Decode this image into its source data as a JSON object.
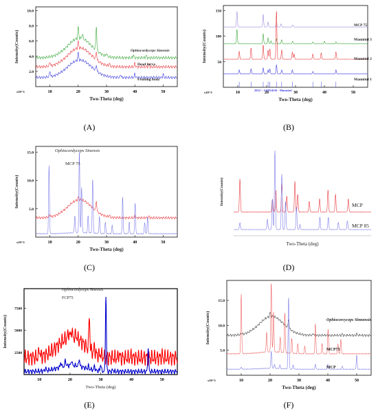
{
  "panel_labels": [
    "(A)",
    "(B)",
    "(C)",
    "(D)",
    "(E)",
    "(F)"
  ],
  "chart_data": [
    {
      "id": "A",
      "type": "line",
      "xlabel": "Two-Theta (deg)",
      "ylabel": "Intensity(Counts)",
      "multiplier": "x10^3",
      "xlim": [
        5,
        55
      ],
      "ylim": [
        0,
        10.5
      ],
      "xticks": [
        10,
        20,
        30,
        40,
        50
      ],
      "yticks": [
        2.0,
        4.0,
        6.0,
        8.0,
        10.0
      ],
      "ytick_labels": [
        "2.0",
        "4.0",
        "6.0",
        "8.0",
        "10.0"
      ],
      "series": [
        {
          "name": "Ophiocordyceps Sinensis",
          "color": "#3aa83a",
          "baseline": 3.8,
          "hump": 2.6,
          "peaks": [
            [
              20,
              1.5
            ],
            [
              26.4,
              3.2
            ],
            [
              21.5,
              0.6
            ],
            [
              30,
              0.4
            ],
            [
              39.5,
              0.4
            ],
            [
              44,
              0.3
            ]
          ]
        },
        {
          "name": "Dead larva",
          "color": "#e8363a",
          "baseline": 2.6,
          "hump": 2.5,
          "peaks": [
            [
              10,
              0.6
            ],
            [
              20,
              0.9
            ],
            [
              26.4,
              1.1
            ],
            [
              31,
              0.4
            ],
            [
              40,
              0.5
            ],
            [
              45,
              0.4
            ]
          ]
        },
        {
          "name": "Fruiting body",
          "color": "#3b3bdd",
          "baseline": 1.2,
          "hump": 2.3,
          "peaks": [
            [
              10,
              0.8
            ],
            [
              20,
              1.0
            ],
            [
              26.4,
              0.8
            ],
            [
              35,
              0.4
            ],
            [
              40,
              0.5
            ],
            [
              50,
              0.4
            ]
          ]
        }
      ]
    },
    {
      "id": "B",
      "type": "line",
      "xlabel": "Two-Theta (deg)",
      "ylabel": "Intensity(Counts)",
      "multiplier": "x10^3",
      "xlim": [
        5,
        55
      ],
      "ylim": [
        0,
        160
      ],
      "xticks": [
        10,
        20,
        30,
        40,
        50
      ],
      "yticks": [
        50,
        100,
        150
      ],
      "ytick_labels": [
        "50",
        "100",
        "150"
      ],
      "reference_label": "2052 > C6H14O6 - Mannitol",
      "series": [
        {
          "name": "MCP 75",
          "color": "#a08ce0",
          "baseline": 118,
          "hump": 0,
          "peaks": [
            [
              9.7,
              30
            ],
            [
              18.8,
              25
            ],
            [
              20.5,
              10
            ],
            [
              23.4,
              8
            ],
            [
              25,
              6
            ],
            [
              29,
              4
            ]
          ]
        },
        {
          "name": "Mannitol 3",
          "color": "#3aa83a",
          "baseline": 85,
          "hump": 0,
          "peaks": [
            [
              9.7,
              28
            ],
            [
              18.8,
              20
            ],
            [
              20.5,
              12
            ],
            [
              21.5,
              6
            ],
            [
              23.4,
              10
            ],
            [
              25.2,
              8
            ],
            [
              29,
              5
            ],
            [
              36,
              4
            ],
            [
              40,
              5
            ],
            [
              44,
              4
            ]
          ]
        },
        {
          "name": "Mannitol 2",
          "color": "#e8363a",
          "baseline": 55,
          "hump": 0,
          "peaks": [
            [
              10.5,
              15
            ],
            [
              14.6,
              22
            ],
            [
              18.8,
              28
            ],
            [
              20.5,
              18
            ],
            [
              21.1,
              20
            ],
            [
              23.4,
              95
            ],
            [
              25.2,
              18
            ],
            [
              28.9,
              14
            ],
            [
              29.5,
              10
            ],
            [
              36,
              10
            ],
            [
              38.9,
              12
            ],
            [
              44,
              14
            ]
          ]
        },
        {
          "name": "Mannitol 1",
          "color": "#3b3bdd",
          "baseline": 26,
          "hump": 0,
          "peaks": [
            [
              10.5,
              8
            ],
            [
              14.6,
              10
            ],
            [
              18.8,
              12
            ],
            [
              20.5,
              8
            ],
            [
              21.1,
              10
            ],
            [
              23.4,
              18
            ],
            [
              25.2,
              8
            ],
            [
              28.9,
              8
            ],
            [
              36,
              5
            ],
            [
              44,
              8
            ]
          ]
        }
      ]
    },
    {
      "id": "C",
      "type": "line",
      "xlabel": "Two-Theta (deg)",
      "ylabel": "Intensity(Counts)",
      "multiplier": "x10^3",
      "xlim": [
        5,
        55
      ],
      "ylim": [
        0,
        16
      ],
      "xticks": [
        10,
        20,
        30,
        40,
        50
      ],
      "yticks": [
        5.0,
        10.0,
        15.0
      ],
      "ytick_labels": [
        "5.0",
        "10.0",
        "15.0"
      ],
      "series": [
        {
          "name": "Ophiocordyceps Sinensis",
          "color": "#e8363a",
          "baseline": 3.4,
          "hump": 3.2,
          "peaks": [
            [
              10,
              0.6
            ],
            [
              20,
              0.5
            ],
            [
              26.4,
              1.8
            ],
            [
              31,
              0.4
            ],
            [
              40,
              0.4
            ],
            [
              45,
              0.3
            ]
          ]
        },
        {
          "name": "MCP 75",
          "color": "#7a7ae8",
          "baseline": 0.6,
          "hump": 0.2,
          "peaks": [
            [
              9.7,
              12
            ],
            [
              18.8,
              3
            ],
            [
              20.4,
              14.5
            ],
            [
              21.2,
              8
            ],
            [
              23.5,
              3
            ],
            [
              25.1,
              9.5
            ],
            [
              27.5,
              3
            ],
            [
              29.6,
              2
            ],
            [
              32,
              1.5
            ],
            [
              35.7,
              6.5
            ],
            [
              38,
              2
            ],
            [
              40.1,
              5.5
            ],
            [
              43.5,
              2
            ],
            [
              44.5,
              3
            ]
          ]
        }
      ]
    },
    {
      "id": "D",
      "type": "line",
      "xlabel": "Two-Theta (deg)",
      "ylabel": "Intensity(Counts)",
      "xlim": [
        8,
        52
      ],
      "ylim": [
        0,
        10
      ],
      "xticks": [],
      "yticks": [],
      "series": [
        {
          "name": "MCP",
          "color": "#e8363a",
          "baseline": 2.7,
          "hump": 0,
          "peaks": [
            [
              10,
              3.8
            ],
            [
              20.4,
              1.5
            ],
            [
              21.5,
              2.5
            ],
            [
              23.4,
              3.2
            ],
            [
              25,
              1.8
            ],
            [
              27.6,
              3.5
            ],
            [
              28.5,
              2
            ],
            [
              32.2,
              1.2
            ],
            [
              35.5,
              1.5
            ],
            [
              38.2,
              2.5
            ],
            [
              40.6,
              2
            ],
            [
              44.7,
              1.5
            ]
          ]
        },
        {
          "name": "MCP 85",
          "color": "#7a7ae8",
          "baseline": 0.7,
          "hump": 0,
          "peaks": [
            [
              10,
              0.8
            ],
            [
              18.8,
              1.2
            ],
            [
              20.4,
              3.5
            ],
            [
              21.2,
              9.0
            ],
            [
              23.4,
              6.3
            ],
            [
              24.6,
              3.2
            ],
            [
              28.1,
              2.6
            ],
            [
              29.2,
              0.6
            ],
            [
              35.6,
              1.4
            ],
            [
              38.3,
              1.4
            ],
            [
              41.5,
              0.8
            ],
            [
              44.4,
              1.0
            ]
          ]
        }
      ]
    },
    {
      "id": "E",
      "type": "line",
      "xlabel": "Two-Theta (deg)",
      "ylabel": "Intensity(Counts)",
      "xlim": [
        5,
        55
      ],
      "ylim": [
        0,
        9700
      ],
      "xticks": [
        10,
        20,
        30,
        40,
        50
      ],
      "yticks": [
        2500,
        5000,
        7500
      ],
      "ytick_labels": [
        "2500",
        "5000",
        "7500"
      ],
      "series": [
        {
          "name": "Ophiocordyceps Sinensis",
          "color": "#ff0000",
          "baseline": 1900,
          "hump": 2400,
          "peaks": [
            [
              10,
              1000
            ],
            [
              19.5,
              600
            ],
            [
              20.5,
              800
            ],
            [
              22,
              400
            ],
            [
              26.3,
              4000
            ],
            [
              28,
              800
            ],
            [
              30,
              400
            ],
            [
              36,
              500
            ],
            [
              40,
              300
            ],
            [
              50,
              300
            ]
          ]
        },
        {
          "name": "FCP75",
          "color": "#0000cc",
          "baseline": 350,
          "hump": 700,
          "peaks": [
            [
              12,
              300
            ],
            [
              17,
              600
            ],
            [
              18.5,
              700
            ],
            [
              20.5,
              600
            ],
            [
              23,
              900
            ],
            [
              26,
              300
            ],
            [
              28,
              500
            ],
            [
              30,
              800
            ],
            [
              31.7,
              8500
            ],
            [
              34,
              200
            ],
            [
              45.5,
              2800
            ]
          ]
        }
      ]
    },
    {
      "id": "F",
      "type": "line",
      "xlabel": "Two-Theta (deg)",
      "ylabel": "Intensity(Counts)",
      "multiplier": "x10^3",
      "xlim": [
        5,
        55
      ],
      "ylim": [
        0,
        19
      ],
      "xticks": [
        10,
        20,
        30,
        40,
        50
      ],
      "yticks": [
        5.0,
        10.0,
        15.0
      ],
      "ytick_labels": [
        "5.0",
        "10.0",
        "15.0"
      ],
      "series": [
        {
          "name": "Ophiocorcyceps Sinnensis",
          "color": "#444444",
          "baseline": 8.0,
          "hump": 3.8,
          "peaks": [
            [
              10,
              0.3
            ],
            [
              20,
              0.8
            ],
            [
              26.4,
              1.8
            ],
            [
              35,
              0.4
            ],
            [
              45,
              0.3
            ],
            [
              50,
              0.3
            ]
          ]
        },
        {
          "name": "MCP75",
          "color": "#f06060",
          "baseline": 4.3,
          "hump": 0.4,
          "peaks": [
            [
              10,
              12
            ],
            [
              18.8,
              4
            ],
            [
              20.4,
              14
            ],
            [
              21.2,
              8
            ],
            [
              23.5,
              3
            ],
            [
              25.1,
              8
            ],
            [
              27.5,
              3
            ],
            [
              29.6,
              2
            ],
            [
              32,
              1.5
            ],
            [
              35.7,
              6
            ],
            [
              38,
              2
            ],
            [
              40.1,
              5
            ],
            [
              43.5,
              2
            ],
            [
              44.5,
              3
            ]
          ]
        },
        {
          "name": "MCP",
          "color": "#7a7ae8",
          "baseline": 1.2,
          "hump": 0.2,
          "peaks": [
            [
              10,
              0.5
            ],
            [
              20.4,
              3.5
            ],
            [
              21.5,
              0.8
            ],
            [
              23.4,
              0.7
            ],
            [
              26.4,
              14.5
            ],
            [
              28,
              0.8
            ],
            [
              35.7,
              1
            ],
            [
              40,
              1
            ],
            [
              45,
              0.6
            ],
            [
              50,
              2.8
            ]
          ]
        }
      ]
    }
  ]
}
